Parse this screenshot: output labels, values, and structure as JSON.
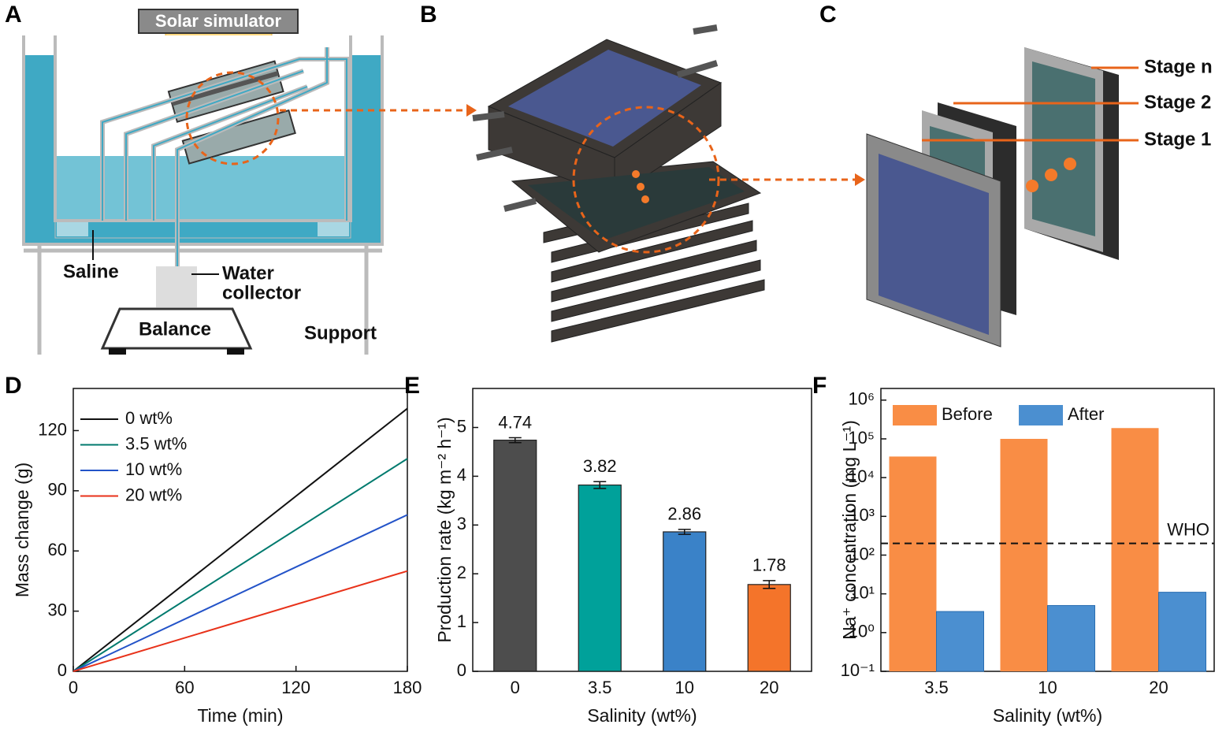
{
  "diagrams": {
    "A": {
      "panel": "A",
      "labels": [
        "Solar simulator",
        "Saline",
        "Water",
        "collector",
        "Balance",
        "Support"
      ]
    },
    "B": {
      "panel": "B"
    },
    "C": {
      "panel": "C",
      "labels": [
        "Stage n",
        "Stage 2",
        "Stage 1"
      ]
    }
  },
  "chart_data": [
    {
      "panel": "D",
      "type": "line",
      "x_label": "Time (min)",
      "y_label": "Mass change (g)",
      "x": [
        0,
        180
      ],
      "series": [
        {
          "name": "0 wt%",
          "color": "#111111",
          "values": [
            0,
            131
          ]
        },
        {
          "name": "3.5 wt%",
          "color": "#007a6e",
          "values": [
            0,
            106
          ]
        },
        {
          "name": "10 wt%",
          "color": "#2353c8",
          "values": [
            0,
            78
          ]
        },
        {
          "name": "20 wt%",
          "color": "#e8321a",
          "values": [
            0,
            50
          ]
        }
      ],
      "xlim": [
        0,
        180
      ],
      "xticks": [
        0,
        60,
        120,
        180
      ],
      "ylim": [
        0,
        141
      ],
      "yticks": [
        0,
        30,
        60,
        90,
        120
      ],
      "legend": "upper left"
    },
    {
      "panel": "E",
      "type": "bar",
      "x_label": "Salinity (wt%)",
      "y_label": "Production rate (kg m⁻² h⁻¹)",
      "categories": [
        "0",
        "3.5",
        "10",
        "20"
      ],
      "values": [
        4.74,
        3.82,
        2.86,
        1.78
      ],
      "errors": [
        0.05,
        0.07,
        0.05,
        0.08
      ],
      "colors": [
        "#4d4d4d",
        "#00a19a",
        "#3a82c8",
        "#f4742a"
      ],
      "ylim": [
        0,
        5.8
      ],
      "yticks": [
        0,
        1,
        2,
        3,
        4,
        5
      ]
    },
    {
      "panel": "F",
      "type": "grouped_bar",
      "log_scale": true,
      "x_label": "Salinity (wt%)",
      "y_label": "Na⁺ concentration (mg L⁻¹)",
      "categories": [
        "3.5",
        "10",
        "20"
      ],
      "series": [
        {
          "name": "Before",
          "color": "#f98d45",
          "values": [
            35000,
            100000,
            190000
          ]
        },
        {
          "name": "After",
          "color": "#4b8fd0",
          "values": [
            3.5,
            5,
            11
          ]
        }
      ],
      "reference_line": {
        "value": 200,
        "label": "WHO"
      },
      "ylim": [
        0.1,
        2000000
      ],
      "yticks": [
        {
          "value": 0.1,
          "label": "10⁻¹"
        },
        {
          "value": 1,
          "label": "10⁰"
        },
        {
          "value": 10,
          "label": "10¹"
        },
        {
          "value": 100,
          "label": "10²"
        },
        {
          "value": 1000,
          "label": "10³"
        },
        {
          "value": 10000,
          "label": "10⁴"
        },
        {
          "value": 100000,
          "label": "10⁵"
        },
        {
          "value": 1000000,
          "label": "10⁶"
        }
      ],
      "legend": "top"
    }
  ]
}
